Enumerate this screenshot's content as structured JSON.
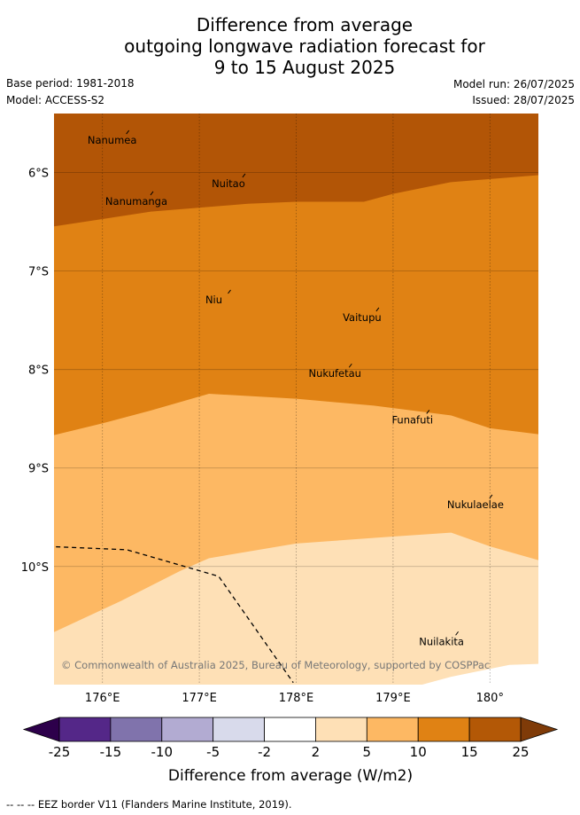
{
  "title": {
    "line1": "Difference from average",
    "line2": "outgoing longwave radiation forecast for",
    "line3": "9 to 15 August 2025"
  },
  "meta": {
    "base_period": "Base period: 1981-2018",
    "model": "Model: ACCESS-S2",
    "model_run": "Model run: 26/07/2025",
    "issued": "Issued: 28/07/2025"
  },
  "map": {
    "lon_range": [
      175.5,
      180.5
    ],
    "lat_range": [
      -11.2,
      -5.4
    ],
    "lon_ticks": [
      {
        "value": 176,
        "label": "176°E"
      },
      {
        "value": 177,
        "label": "177°E"
      },
      {
        "value": 178,
        "label": "178°E"
      },
      {
        "value": 179,
        "label": "179°E"
      },
      {
        "value": 180,
        "label": "180°"
      }
    ],
    "lat_ticks": [
      {
        "value": -6,
        "label": "6°S"
      },
      {
        "value": -7,
        "label": "7°S"
      },
      {
        "value": -8,
        "label": "8°S"
      },
      {
        "value": -9,
        "label": "9°S"
      },
      {
        "value": -10,
        "label": "10°S"
      }
    ],
    "grid": true,
    "copyright": "© Commonwealth of Australia 2025, Bureau of Meteorology, supported by COSPPac",
    "places": [
      {
        "name": "Nanumea",
        "lon": 176.1,
        "lat": -5.68
      },
      {
        "name": "Nuitao",
        "lon": 177.3,
        "lat": -6.12
      },
      {
        "name": "Nanumanga",
        "lon": 176.35,
        "lat": -6.3
      },
      {
        "name": "Niu",
        "lon": 177.15,
        "lat": -7.3
      },
      {
        "name": "Vaitupu",
        "lon": 178.68,
        "lat": -7.48
      },
      {
        "name": "Nukufetau",
        "lon": 178.4,
        "lat": -8.05
      },
      {
        "name": "Funafuti",
        "lon": 179.2,
        "lat": -8.52
      },
      {
        "name": "Nukulaelae",
        "lon": 179.85,
        "lat": -9.38
      },
      {
        "name": "Nuilakita",
        "lon": 179.5,
        "lat": -10.77
      }
    ],
    "eez_border": [
      {
        "lon": 175.52,
        "lat": -9.8
      },
      {
        "lon": 176.25,
        "lat": -9.83
      },
      {
        "lon": 177.2,
        "lat": -10.1
      },
      {
        "lon": 177.97,
        "lat": -11.18
      }
    ],
    "regions": [
      {
        "bin": "15 to 25",
        "color": "#b25506",
        "top_boundary": [
          [
            175.5,
            -5.4
          ],
          [
            180.5,
            -5.4
          ]
        ],
        "bottom_boundary": [
          [
            175.5,
            -6.55
          ],
          [
            176.5,
            -6.4
          ],
          [
            177.5,
            -6.32
          ],
          [
            178,
            -6.3
          ],
          [
            178.7,
            -6.3
          ],
          [
            179,
            -6.22
          ],
          [
            179.6,
            -6.1
          ],
          [
            180.5,
            -6.03
          ]
        ]
      },
      {
        "bin": "10 to 15",
        "color": "#e08214",
        "bottom_boundary": [
          [
            175.5,
            -8.67
          ],
          [
            176,
            -8.55
          ],
          [
            176.5,
            -8.42
          ],
          [
            177.1,
            -8.25
          ],
          [
            178,
            -8.3
          ],
          [
            178.8,
            -8.37
          ],
          [
            179.6,
            -8.47
          ],
          [
            180,
            -8.6
          ],
          [
            180.5,
            -8.66
          ]
        ]
      },
      {
        "bin": "5 to 10",
        "color": "#fdb863",
        "bottom_boundary": [
          [
            175.5,
            -10.67
          ],
          [
            176.2,
            -10.35
          ],
          [
            176.8,
            -10.05
          ],
          [
            177.1,
            -9.92
          ],
          [
            178,
            -9.77
          ],
          [
            179,
            -9.7
          ],
          [
            179.6,
            -9.66
          ],
          [
            180,
            -9.8
          ],
          [
            180.5,
            -9.94
          ]
        ]
      },
      {
        "bin": "2 to 5",
        "color": "#fee0b6",
        "bottom_boundary": [
          [
            175.5,
            -11.2
          ],
          [
            180.5,
            -11.2
          ]
        ]
      }
    ],
    "white_patch": [
      [
        179.3,
        -11.2
      ],
      [
        179.6,
        -11.12
      ],
      [
        180.2,
        -11.0
      ],
      [
        180.5,
        -10.99
      ],
      [
        180.5,
        -11.2
      ]
    ]
  },
  "colorbar": {
    "label": "Difference from average (W/m2)",
    "boundaries": [
      "-25",
      "-15",
      "-10",
      "-5",
      "-2",
      "2",
      "5",
      "10",
      "15",
      "25"
    ],
    "colors": [
      "#542788",
      "#8073ac",
      "#b2abd2",
      "#d8daeb",
      "#ffffff",
      "#fee0b6",
      "#fdb863",
      "#e08214",
      "#b35806"
    ],
    "under_color": "#2d004b",
    "over_color": "#7f3b08"
  },
  "footnote": "--  --  -- EEZ border V11 (Flanders Marine Institute, 2019)."
}
